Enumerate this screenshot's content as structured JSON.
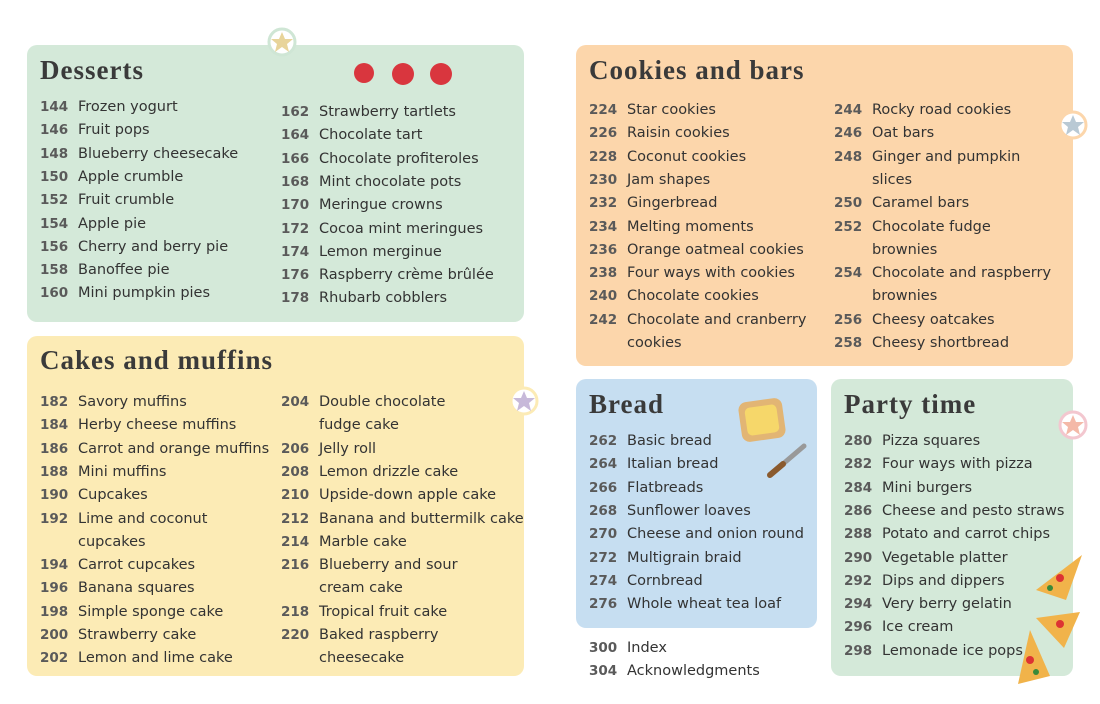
{
  "desserts": {
    "title": "Desserts",
    "columns": [
      [
        {
          "page": 144,
          "name": "Frozen yogurt"
        },
        {
          "page": 146,
          "name": "Fruit pops"
        },
        {
          "page": 148,
          "name": "Blueberry cheesecake"
        },
        {
          "page": 150,
          "name": "Apple crumble"
        },
        {
          "page": 152,
          "name": "Fruit crumble"
        },
        {
          "page": 154,
          "name": "Apple pie"
        },
        {
          "page": 156,
          "name": "Cherry and berry pie"
        },
        {
          "page": 158,
          "name": "Banoffee pie"
        },
        {
          "page": 160,
          "name": "Mini pumpkin pies"
        }
      ],
      [
        {
          "page": 162,
          "name": "Strawberry tartlets"
        },
        {
          "page": 164,
          "name": "Chocolate tart"
        },
        {
          "page": 166,
          "name": "Chocolate profiteroles"
        },
        {
          "page": 168,
          "name": "Mint chocolate pots"
        },
        {
          "page": 170,
          "name": "Meringue crowns"
        },
        {
          "page": 172,
          "name": "Cocoa mint meringues"
        },
        {
          "page": 174,
          "name": "Lemon merginue"
        },
        {
          "page": 176,
          "name": "Raspberry crème brûlée"
        },
        {
          "page": 178,
          "name": "Rhubarb cobblers"
        }
      ]
    ]
  },
  "cakes": {
    "title": "Cakes and muffins",
    "columns": [
      [
        {
          "page": 182,
          "name": "Savory muffins"
        },
        {
          "page": 184,
          "name": "Herby cheese muffins"
        },
        {
          "page": 186,
          "name": "Carrot and orange muffins"
        },
        {
          "page": 188,
          "name": "Mini muffins"
        },
        {
          "page": 190,
          "name": "Cupcakes"
        },
        {
          "page": 192,
          "name": "Lime and coconut\ncupcakes"
        },
        {
          "page": 194,
          "name": "Carrot cupcakes"
        },
        {
          "page": 196,
          "name": "Banana squares"
        },
        {
          "page": 198,
          "name": "Simple sponge cake"
        },
        {
          "page": 200,
          "name": "Strawberry cake"
        },
        {
          "page": 202,
          "name": "Lemon and lime cake"
        }
      ],
      [
        {
          "page": 204,
          "name": "Double chocolate\nfudge cake"
        },
        {
          "page": 206,
          "name": "Jelly roll"
        },
        {
          "page": 208,
          "name": "Lemon drizzle cake"
        },
        {
          "page": 210,
          "name": "Upside-down apple cake"
        },
        {
          "page": 212,
          "name": "Banana and buttermilk cake"
        },
        {
          "page": 214,
          "name": "Marble cake"
        },
        {
          "page": 216,
          "name": "Blueberry and sour\ncream cake"
        },
        {
          "page": 218,
          "name": "Tropical fruit cake"
        },
        {
          "page": 220,
          "name": "Baked raspberry\ncheesecake"
        }
      ]
    ]
  },
  "cookies": {
    "title": "Cookies and bars",
    "columns": [
      [
        {
          "page": 224,
          "name": "Star cookies"
        },
        {
          "page": 226,
          "name": "Raisin cookies"
        },
        {
          "page": 228,
          "name": "Coconut cookies"
        },
        {
          "page": 230,
          "name": "Jam shapes"
        },
        {
          "page": 232,
          "name": "Gingerbread"
        },
        {
          "page": 234,
          "name": "Melting moments"
        },
        {
          "page": 236,
          "name": "Orange oatmeal cookies"
        },
        {
          "page": 238,
          "name": "Four ways with cookies"
        },
        {
          "page": 240,
          "name": "Chocolate cookies"
        },
        {
          "page": 242,
          "name": "Chocolate and cranberry\ncookies"
        }
      ],
      [
        {
          "page": 244,
          "name": "Rocky road cookies"
        },
        {
          "page": 246,
          "name": "Oat bars"
        },
        {
          "page": 248,
          "name": "Ginger and pumpkin\nslices"
        },
        {
          "page": 250,
          "name": "Caramel bars"
        },
        {
          "page": 252,
          "name": "Chocolate fudge\nbrownies"
        },
        {
          "page": 254,
          "name": "Chocolate and raspberry\nbrownies"
        },
        {
          "page": 256,
          "name": "Cheesy oatcakes"
        },
        {
          "page": 258,
          "name": "Cheesy shortbread"
        }
      ]
    ]
  },
  "bread": {
    "title": "Bread",
    "columns": [
      [
        {
          "page": 262,
          "name": "Basic bread"
        },
        {
          "page": 264,
          "name": "Italian bread"
        },
        {
          "page": 266,
          "name": "Flatbreads"
        },
        {
          "page": 268,
          "name": "Sunflower loaves"
        },
        {
          "page": 270,
          "name": "Cheese and onion round"
        },
        {
          "page": 272,
          "name": "Multigrain braid"
        },
        {
          "page": 274,
          "name": "Cornbread"
        },
        {
          "page": 276,
          "name": "Whole wheat tea loaf"
        }
      ]
    ]
  },
  "party": {
    "title": "Party time",
    "columns": [
      [
        {
          "page": 280,
          "name": "Pizza squares"
        },
        {
          "page": 282,
          "name": "Four ways with pizza"
        },
        {
          "page": 284,
          "name": "Mini burgers"
        },
        {
          "page": 286,
          "name": "Cheese and pesto straws"
        },
        {
          "page": 288,
          "name": "Potato and carrot chips"
        },
        {
          "page": 290,
          "name": "Vegetable platter"
        },
        {
          "page": 292,
          "name": "Dips and dippers"
        },
        {
          "page": 294,
          "name": "Very berry gelatin"
        },
        {
          "page": 296,
          "name": "Ice cream"
        },
        {
          "page": 298,
          "name": "Lemonade ice pops"
        }
      ]
    ]
  },
  "extra": {
    "columns": [
      [
        {
          "page": 300,
          "name": "Index"
        },
        {
          "page": 304,
          "name": "Acknowledgments"
        }
      ]
    ]
  }
}
